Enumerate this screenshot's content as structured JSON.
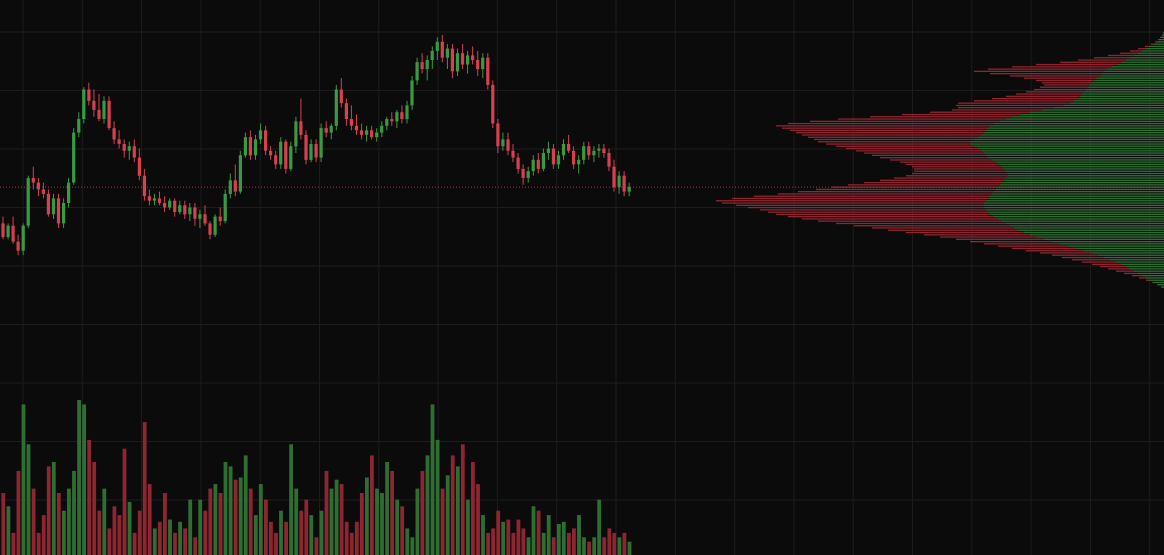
{
  "colors": {
    "background": "#0b0b0b",
    "grid": "#1c1c1c",
    "up": "#3a9a44",
    "down": "#d6404f",
    "volume_up": "#2f6e33",
    "volume_down": "#8d2630",
    "profile_up": "#2f6e33",
    "profile_down": "#8d2630",
    "last_price_line": "#d6404f"
  },
  "chart_data": {
    "type": "candlestick",
    "grid": true,
    "legend": "none",
    "title": "",
    "xlabel": "",
    "ylabel": "",
    "ylim": [
      40,
      170
    ],
    "price_axis_labels_visible": false,
    "time_axis_labels_visible": false,
    "last_price": 100,
    "candles": [
      [
        84,
        87,
        77,
        78
      ],
      [
        78,
        84,
        77,
        83
      ],
      [
        83,
        87,
        75,
        76
      ],
      [
        76,
        79,
        70,
        72
      ],
      [
        72,
        84,
        70,
        83
      ],
      [
        83,
        105,
        82,
        104
      ],
      [
        104,
        109,
        99,
        102
      ],
      [
        102,
        104,
        96,
        99
      ],
      [
        99,
        102,
        95,
        97
      ],
      [
        97,
        99,
        87,
        88
      ],
      [
        88,
        97,
        86,
        95
      ],
      [
        95,
        97,
        82,
        84
      ],
      [
        84,
        95,
        82,
        93
      ],
      [
        93,
        104,
        91,
        102
      ],
      [
        102,
        126,
        101,
        124
      ],
      [
        124,
        133,
        122,
        130
      ],
      [
        130,
        144,
        128,
        143
      ],
      [
        143,
        146,
        136,
        138
      ],
      [
        138,
        143,
        131,
        134
      ],
      [
        134,
        141,
        129,
        130
      ],
      [
        130,
        140,
        128,
        138
      ],
      [
        138,
        140,
        125,
        126
      ],
      [
        126,
        129,
        119,
        121
      ],
      [
        121,
        125,
        117,
        119
      ],
      [
        119,
        121,
        113,
        116
      ],
      [
        116,
        120,
        112,
        118
      ],
      [
        118,
        121,
        111,
        113
      ],
      [
        113,
        117,
        103,
        105
      ],
      [
        105,
        108,
        94,
        96
      ],
      [
        96,
        99,
        92,
        94
      ],
      [
        94,
        97,
        92,
        95
      ],
      [
        95,
        98,
        92,
        93
      ],
      [
        93,
        96,
        89,
        91
      ],
      [
        91,
        95,
        90,
        94
      ],
      [
        94,
        95,
        87,
        89
      ],
      [
        89,
        94,
        88,
        92
      ],
      [
        92,
        94,
        86,
        88
      ],
      [
        88,
        93,
        85,
        91
      ],
      [
        91,
        93,
        83,
        86
      ],
      [
        86,
        90,
        82,
        88
      ],
      [
        88,
        92,
        83,
        84
      ],
      [
        84,
        85,
        77,
        79
      ],
      [
        79,
        88,
        78,
        87
      ],
      [
        87,
        91,
        83,
        85
      ],
      [
        85,
        99,
        84,
        97
      ],
      [
        97,
        106,
        95,
        103
      ],
      [
        103,
        110,
        96,
        98
      ],
      [
        98,
        116,
        97,
        114
      ],
      [
        114,
        124,
        113,
        122
      ],
      [
        122,
        125,
        112,
        114
      ],
      [
        114,
        123,
        112,
        121
      ],
      [
        121,
        128,
        119,
        125
      ],
      [
        125,
        127,
        114,
        116
      ],
      [
        116,
        118,
        112,
        114
      ],
      [
        114,
        116,
        108,
        110
      ],
      [
        110,
        122,
        108,
        120
      ],
      [
        120,
        121,
        106,
        108
      ],
      [
        108,
        120,
        107,
        118
      ],
      [
        118,
        131,
        115,
        129
      ],
      [
        129,
        139,
        121,
        123
      ],
      [
        123,
        125,
        110,
        112
      ],
      [
        112,
        121,
        111,
        119
      ],
      [
        119,
        121,
        111,
        113
      ],
      [
        113,
        128,
        111,
        126
      ],
      [
        126,
        129,
        122,
        124
      ],
      [
        124,
        128,
        121,
        127
      ],
      [
        127,
        145,
        125,
        143
      ],
      [
        143,
        148,
        135,
        137
      ],
      [
        137,
        139,
        127,
        130
      ],
      [
        130,
        136,
        125,
        127
      ],
      [
        127,
        132,
        123,
        125
      ],
      [
        125,
        128,
        121,
        123
      ],
      [
        123,
        127,
        120,
        125
      ],
      [
        125,
        127,
        121,
        122
      ],
      [
        122,
        126,
        120,
        124
      ],
      [
        124,
        129,
        122,
        127
      ],
      [
        127,
        131,
        125,
        130
      ],
      [
        130,
        133,
        127,
        129
      ],
      [
        129,
        134,
        126,
        133
      ],
      [
        133,
        136,
        128,
        130
      ],
      [
        130,
        138,
        128,
        136
      ],
      [
        136,
        149,
        134,
        147
      ],
      [
        147,
        157,
        145,
        155
      ],
      [
        155,
        159,
        150,
        152
      ],
      [
        152,
        158,
        147,
        156
      ],
      [
        156,
        162,
        152,
        160
      ],
      [
        160,
        166,
        156,
        164
      ],
      [
        164,
        167,
        155,
        157
      ],
      [
        157,
        163,
        152,
        161
      ],
      [
        161,
        163,
        148,
        151
      ],
      [
        151,
        161,
        149,
        159
      ],
      [
        159,
        163,
        152,
        154
      ],
      [
        154,
        160,
        150,
        158
      ],
      [
        158,
        162,
        154,
        156
      ],
      [
        156,
        160,
        149,
        152
      ],
      [
        152,
        159,
        148,
        157
      ],
      [
        157,
        159,
        143,
        145
      ],
      [
        145,
        147,
        126,
        128
      ],
      [
        128,
        130,
        115,
        118
      ],
      [
        118,
        124,
        116,
        121
      ],
      [
        121,
        124,
        114,
        116
      ],
      [
        116,
        119,
        111,
        113
      ],
      [
        113,
        115,
        106,
        108
      ],
      [
        108,
        110,
        101,
        104
      ],
      [
        104,
        109,
        102,
        107
      ],
      [
        107,
        114,
        105,
        112
      ],
      [
        112,
        115,
        106,
        108
      ],
      [
        108,
        117,
        107,
        115
      ],
      [
        115,
        120,
        112,
        117
      ],
      [
        117,
        119,
        108,
        110
      ],
      [
        110,
        116,
        108,
        114
      ],
      [
        114,
        121,
        112,
        119
      ],
      [
        119,
        123,
        115,
        116
      ],
      [
        116,
        118,
        108,
        110
      ],
      [
        110,
        114,
        106,
        112
      ],
      [
        112,
        120,
        110,
        118
      ],
      [
        118,
        120,
        112,
        114
      ],
      [
        114,
        118,
        111,
        116
      ],
      [
        116,
        119,
        113,
        117
      ],
      [
        117,
        119,
        113,
        115
      ],
      [
        115,
        117,
        107,
        109
      ],
      [
        109,
        112,
        98,
        100
      ],
      [
        100,
        107,
        97,
        105
      ],
      [
        105,
        107,
        96,
        98
      ],
      [
        98,
        102,
        96,
        100
      ]
    ],
    "volume": [
      28,
      22,
      10,
      38,
      68,
      50,
      30,
      10,
      18,
      40,
      42,
      28,
      20,
      30,
      38,
      70,
      68,
      52,
      42,
      20,
      30,
      12,
      22,
      18,
      48,
      24,
      10,
      20,
      60,
      32,
      12,
      15,
      28,
      16,
      10,
      15,
      12,
      25,
      8,
      25,
      20,
      30,
      32,
      28,
      42,
      40,
      34,
      35,
      45,
      30,
      18,
      32,
      25,
      15,
      10,
      20,
      15,
      50,
      30,
      20,
      25,
      18,
      8,
      20,
      38,
      30,
      34,
      32,
      15,
      10,
      15,
      28,
      35,
      45,
      30,
      28,
      42,
      38,
      25,
      22,
      12,
      8,
      30,
      38,
      45,
      68,
      52,
      30,
      36,
      45,
      40,
      50,
      25,
      42,
      32,
      18,
      10,
      12,
      20,
      15,
      16,
      10,
      16,
      12,
      8,
      22,
      20,
      10,
      18,
      8,
      14,
      15,
      10,
      12,
      18,
      8,
      6,
      8,
      25,
      8,
      12,
      10,
      8,
      10,
      6
    ],
    "volume_profile": [
      {
        "price": 168.0,
        "up": 1,
        "down": 0
      },
      {
        "price": 167.0,
        "up": 2,
        "down": 0
      },
      {
        "price": 166.0,
        "up": 3,
        "down": 1
      },
      {
        "price": 165.0,
        "up": 5,
        "down": 1
      },
      {
        "price": 164.0,
        "up": 7,
        "down": 2
      },
      {
        "price": 163.0,
        "up": 10,
        "down": 3
      },
      {
        "price": 162.0,
        "up": 14,
        "down": 5
      },
      {
        "price": 161.0,
        "up": 18,
        "down": 8
      },
      {
        "price": 160.0,
        "up": 22,
        "down": 12
      },
      {
        "price": 159.0,
        "up": 26,
        "down": 18
      },
      {
        "price": 158.0,
        "up": 30,
        "down": 26
      },
      {
        "price": 157.0,
        "up": 34,
        "down": 36
      },
      {
        "price": 156.0,
        "up": 38,
        "down": 48
      },
      {
        "price": 155.0,
        "up": 42,
        "down": 62
      },
      {
        "price": 154.0,
        "up": 46,
        "down": 82
      },
      {
        "price": 153.0,
        "up": 52,
        "down": 100
      },
      {
        "price": 152.0,
        "up": 56,
        "down": 120
      },
      {
        "price": 151.0,
        "up": 60,
        "down": 130
      },
      {
        "price": 150.0,
        "up": 62,
        "down": 112
      },
      {
        "price": 149.0,
        "up": 64,
        "down": 90
      },
      {
        "price": 148.0,
        "up": 68,
        "down": 72
      },
      {
        "price": 147.0,
        "up": 70,
        "down": 58
      },
      {
        "price": 146.0,
        "up": 72,
        "down": 50
      },
      {
        "price": 145.0,
        "up": 74,
        "down": 46
      },
      {
        "price": 144.0,
        "up": 76,
        "down": 48
      },
      {
        "price": 143.0,
        "up": 78,
        "down": 52
      },
      {
        "price": 142.0,
        "up": 80,
        "down": 58
      },
      {
        "price": 141.0,
        "up": 82,
        "down": 66
      },
      {
        "price": 140.0,
        "up": 84,
        "down": 74
      },
      {
        "price": 139.0,
        "up": 86,
        "down": 86
      },
      {
        "price": 138.0,
        "up": 90,
        "down": 100
      },
      {
        "price": 137.0,
        "up": 94,
        "down": 112
      },
      {
        "price": 136.0,
        "up": 100,
        "down": 108
      },
      {
        "price": 135.0,
        "up": 110,
        "down": 96
      },
      {
        "price": 134.0,
        "up": 122,
        "down": 90
      },
      {
        "price": 133.0,
        "up": 134,
        "down": 100
      },
      {
        "price": 132.0,
        "up": 144,
        "down": 118
      },
      {
        "price": 131.0,
        "up": 152,
        "down": 142
      },
      {
        "price": 130.0,
        "up": 158,
        "down": 168
      },
      {
        "price": 129.0,
        "up": 164,
        "down": 190
      },
      {
        "price": 128.0,
        "up": 170,
        "down": 206
      },
      {
        "price": 127.0,
        "up": 174,
        "down": 214
      },
      {
        "price": 126.0,
        "up": 176,
        "down": 206
      },
      {
        "price": 125.0,
        "up": 178,
        "down": 196
      },
      {
        "price": 124.0,
        "up": 180,
        "down": 188
      },
      {
        "price": 123.0,
        "up": 182,
        "down": 180
      },
      {
        "price": 122.0,
        "up": 186,
        "down": 170
      },
      {
        "price": 121.0,
        "up": 190,
        "down": 160
      },
      {
        "price": 120.0,
        "up": 194,
        "down": 152
      },
      {
        "price": 119.0,
        "up": 194,
        "down": 144
      },
      {
        "price": 118.0,
        "up": 190,
        "down": 138
      },
      {
        "price": 117.0,
        "up": 186,
        "down": 132
      },
      {
        "price": 116.0,
        "up": 182,
        "down": 126
      },
      {
        "price": 115.0,
        "up": 180,
        "down": 120
      },
      {
        "price": 114.0,
        "up": 178,
        "down": 114
      },
      {
        "price": 113.0,
        "up": 176,
        "down": 108
      },
      {
        "price": 112.0,
        "up": 172,
        "down": 102
      },
      {
        "price": 111.0,
        "up": 168,
        "down": 96
      },
      {
        "price": 110.0,
        "up": 166,
        "down": 92
      },
      {
        "price": 109.0,
        "up": 162,
        "down": 90
      },
      {
        "price": 108.0,
        "up": 160,
        "down": 90
      },
      {
        "price": 107.0,
        "up": 158,
        "down": 92
      },
      {
        "price": 106.0,
        "up": 156,
        "down": 96
      },
      {
        "price": 105.0,
        "up": 156,
        "down": 102
      },
      {
        "price": 104.0,
        "up": 158,
        "down": 112
      },
      {
        "price": 103.0,
        "up": 160,
        "down": 124
      },
      {
        "price": 102.0,
        "up": 162,
        "down": 138
      },
      {
        "price": 101.0,
        "up": 164,
        "down": 152
      },
      {
        "price": 100.0,
        "up": 166,
        "down": 166
      },
      {
        "price": 99.0,
        "up": 168,
        "down": 180
      },
      {
        "price": 98.0,
        "up": 170,
        "down": 196
      },
      {
        "price": 97.0,
        "up": 172,
        "down": 214
      },
      {
        "price": 96.0,
        "up": 174,
        "down": 236
      },
      {
        "price": 95.0,
        "up": 176,
        "down": 256
      },
      {
        "price": 94.0,
        "up": 178,
        "down": 270
      },
      {
        "price": 93.0,
        "up": 180,
        "down": 262
      },
      {
        "price": 92.0,
        "up": 180,
        "down": 248
      },
      {
        "price": 91.0,
        "up": 180,
        "down": 236
      },
      {
        "price": 90.0,
        "up": 178,
        "down": 226
      },
      {
        "price": 89.0,
        "up": 176,
        "down": 220
      },
      {
        "price": 88.0,
        "up": 174,
        "down": 214
      },
      {
        "price": 87.0,
        "up": 170,
        "down": 206
      },
      {
        "price": 86.0,
        "up": 166,
        "down": 196
      },
      {
        "price": 85.0,
        "up": 162,
        "down": 184
      },
      {
        "price": 84.0,
        "up": 158,
        "down": 170
      },
      {
        "price": 83.0,
        "up": 154,
        "down": 156
      },
      {
        "price": 82.0,
        "up": 150,
        "down": 142
      },
      {
        "price": 81.0,
        "up": 146,
        "down": 130
      },
      {
        "price": 80.0,
        "up": 140,
        "down": 118
      },
      {
        "price": 79.0,
        "up": 134,
        "down": 106
      },
      {
        "price": 78.0,
        "up": 128,
        "down": 96
      },
      {
        "price": 77.0,
        "up": 120,
        "down": 88
      },
      {
        "price": 76.0,
        "up": 112,
        "down": 82
      },
      {
        "price": 75.0,
        "up": 104,
        "down": 76
      },
      {
        "price": 74.0,
        "up": 96,
        "down": 70
      },
      {
        "price": 73.0,
        "up": 88,
        "down": 64
      },
      {
        "price": 72.0,
        "up": 80,
        "down": 58
      },
      {
        "price": 71.0,
        "up": 72,
        "down": 52
      },
      {
        "price": 70.0,
        "up": 66,
        "down": 46
      },
      {
        "price": 69.0,
        "up": 60,
        "down": 42
      },
      {
        "price": 68.0,
        "up": 54,
        "down": 38
      },
      {
        "price": 67.0,
        "up": 48,
        "down": 34
      },
      {
        "price": 66.0,
        "up": 42,
        "down": 30
      },
      {
        "price": 65.0,
        "up": 38,
        "down": 26
      },
      {
        "price": 64.0,
        "up": 34,
        "down": 22
      },
      {
        "price": 63.0,
        "up": 30,
        "down": 18
      },
      {
        "price": 62.0,
        "up": 26,
        "down": 14
      },
      {
        "price": 61.0,
        "up": 22,
        "down": 10
      },
      {
        "price": 60.0,
        "up": 18,
        "down": 7
      },
      {
        "price": 59.0,
        "up": 14,
        "down": 4
      },
      {
        "price": 58.0,
        "up": 10,
        "down": 2
      },
      {
        "price": 57.0,
        "up": 6,
        "down": 1
      },
      {
        "price": 56.0,
        "up": 3,
        "down": 0
      }
    ]
  }
}
